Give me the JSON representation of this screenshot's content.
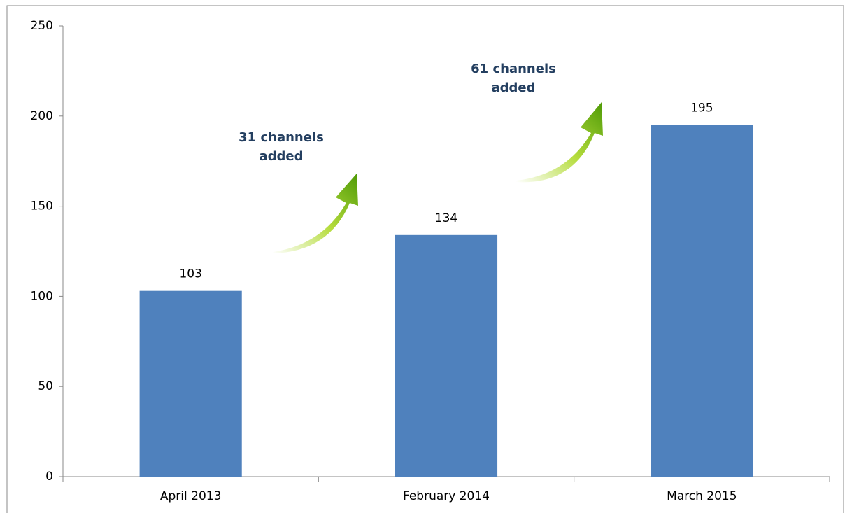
{
  "chart_data": {
    "type": "bar",
    "categories": [
      "April 2013",
      "February 2014",
      "March 2015"
    ],
    "values": [
      103,
      134,
      195
    ],
    "color": "#4f81bd",
    "ylim": [
      0,
      250
    ],
    "yticks": [
      0,
      50,
      100,
      150,
      200,
      250
    ],
    "grid": false,
    "annotations": [
      {
        "text": "31 channels added"
      },
      {
        "text": "61 channels added"
      }
    ]
  }
}
